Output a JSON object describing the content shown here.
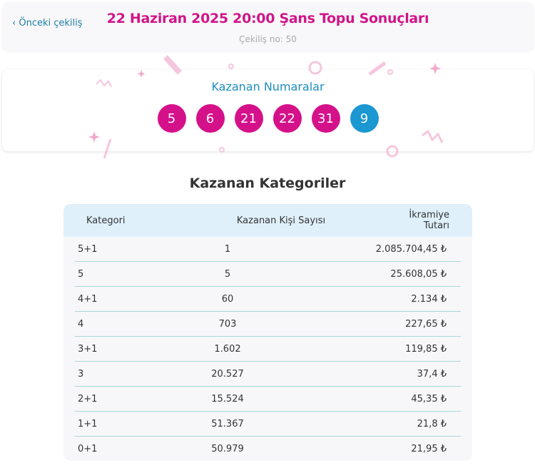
{
  "header": {
    "back_label": "Önceki çekiliş",
    "title": "22 Haziran 2025 20:00 Şans Topu Sonuçları",
    "draw_no": "Çekiliş no: 50"
  },
  "numbers": {
    "title": "Kazanan Numaralar",
    "main": [
      "5",
      "6",
      "21",
      "22",
      "31"
    ],
    "extra": "9",
    "main_color": "#d5118a",
    "extra_color": "#1b97d2"
  },
  "categories": {
    "title": "Kazanan Kategoriler",
    "columns": [
      "Kategori",
      "Kazanan Kişi Sayısı",
      "İkramiye Tutarı"
    ],
    "rows": [
      [
        "5+1",
        "1",
        "2.085.704,45 ₺"
      ],
      [
        "5",
        "5",
        "25.608,05 ₺"
      ],
      [
        "4+1",
        "60",
        "2.134 ₺"
      ],
      [
        "4",
        "703",
        "227,65 ₺"
      ],
      [
        "3+1",
        "1.602",
        "119,85 ₺"
      ],
      [
        "3",
        "20.527",
        "37,4 ₺"
      ],
      [
        "2+1",
        "15.524",
        "45,35 ₺"
      ],
      [
        "1+1",
        "51.367",
        "21,8 ₺"
      ],
      [
        "0+1",
        "50.979",
        "21,95 ₺"
      ]
    ]
  }
}
